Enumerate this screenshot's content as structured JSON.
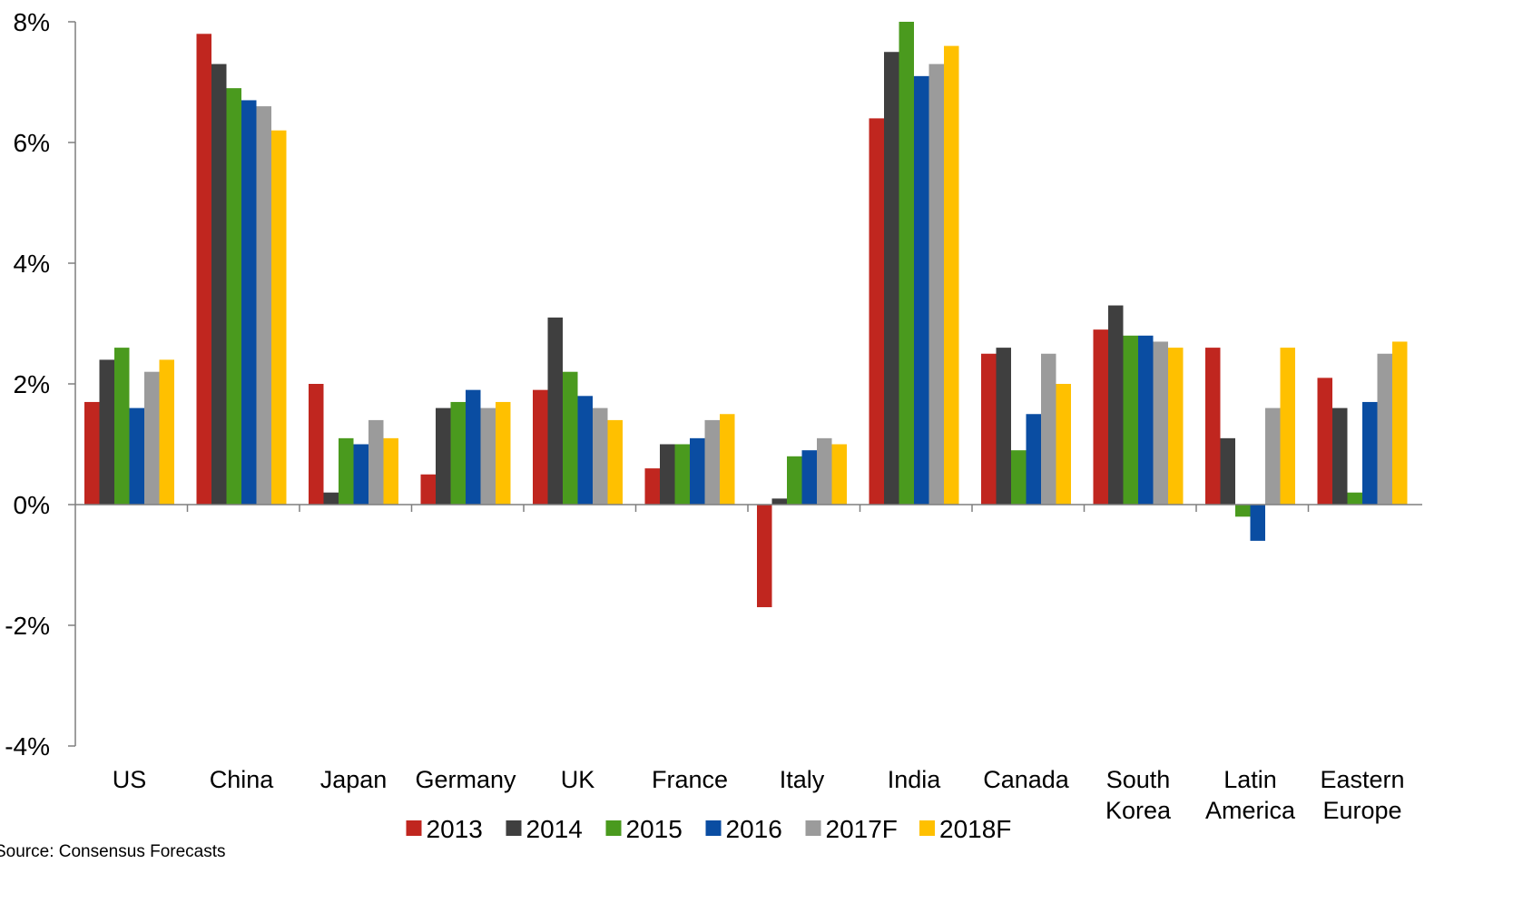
{
  "chart_data": {
    "type": "bar",
    "categories": [
      [
        "US"
      ],
      [
        "China"
      ],
      [
        "Japan"
      ],
      [
        "Germany"
      ],
      [
        "UK"
      ],
      [
        "France"
      ],
      [
        "Italy"
      ],
      [
        "India"
      ],
      [
        "Canada"
      ],
      [
        "South",
        "Korea"
      ],
      [
        "Latin",
        "America"
      ],
      [
        "Eastern",
        "Europe"
      ]
    ],
    "series": [
      {
        "name": "2013",
        "color": "#C0261F",
        "values": [
          1.7,
          7.8,
          2.0,
          0.5,
          1.9,
          0.6,
          -1.7,
          6.4,
          2.5,
          2.9,
          2.6,
          2.1
        ]
      },
      {
        "name": "2014",
        "color": "#3F3F3F",
        "values": [
          2.4,
          7.3,
          0.2,
          1.6,
          3.1,
          1.0,
          0.1,
          7.5,
          2.6,
          3.3,
          1.1,
          1.6
        ]
      },
      {
        "name": "2015",
        "color": "#4A9A1E",
        "values": [
          2.6,
          6.9,
          1.1,
          1.7,
          2.2,
          1.0,
          0.8,
          8.0,
          0.9,
          2.8,
          -0.2,
          0.2
        ]
      },
      {
        "name": "2016",
        "color": "#0A4DA2",
        "values": [
          1.6,
          6.7,
          1.0,
          1.9,
          1.8,
          1.1,
          0.9,
          7.1,
          1.5,
          2.8,
          -0.6,
          1.7
        ]
      },
      {
        "name": "2017F",
        "color": "#9B9B9B",
        "values": [
          2.2,
          6.6,
          1.4,
          1.6,
          1.6,
          1.4,
          1.1,
          7.3,
          2.5,
          2.7,
          1.6,
          2.5
        ]
      },
      {
        "name": "2018F",
        "color": "#FFC000",
        "values": [
          2.4,
          6.2,
          1.1,
          1.7,
          1.4,
          1.5,
          1.0,
          7.6,
          2.0,
          2.6,
          2.6,
          2.7
        ]
      }
    ],
    "yticks": [
      "8%",
      "6%",
      "4%",
      "2%",
      "0%",
      "-2%",
      "-4%"
    ],
    "ytick_values": [
      8,
      6,
      4,
      2,
      0,
      -2,
      -4
    ],
    "ylim": [
      -4,
      8
    ],
    "legend_position": "bottom",
    "grid": false,
    "source": "Source: Consensus Forecasts"
  }
}
